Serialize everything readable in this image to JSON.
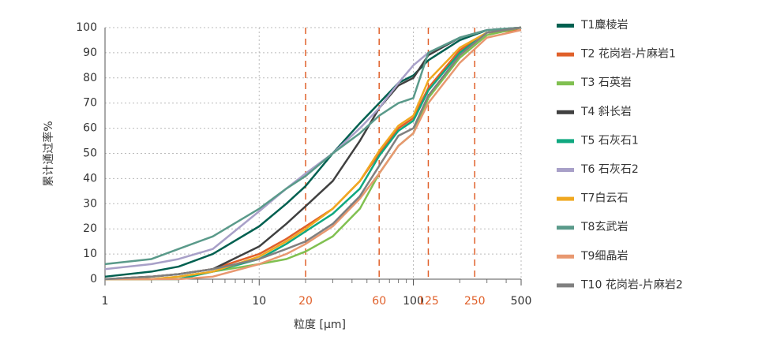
{
  "chart_data": {
    "type": "line",
    "x_label": "粒度 [μm]",
    "y_label": "累计通过率%",
    "log_x": true,
    "grid": true,
    "xlim": [
      1,
      500
    ],
    "xticks": [
      1,
      10,
      100,
      500
    ],
    "reference_lines": [
      20,
      60,
      125,
      250
    ],
    "reference_color": "#e0602a",
    "ylim": [
      0,
      100
    ],
    "yticks": [
      0,
      10,
      20,
      30,
      40,
      50,
      60,
      70,
      80,
      90,
      100
    ],
    "legend": "right",
    "x": [
      1,
      2,
      3,
      5,
      10,
      15,
      20,
      30,
      45,
      60,
      80,
      100,
      125,
      200,
      300,
      500
    ],
    "series": [
      {
        "name": "T1麋棱岩",
        "color": "#006050",
        "values": [
          1,
          3,
          5,
          10,
          21,
          30,
          37,
          50,
          62,
          70,
          78,
          81,
          87,
          95,
          99,
          100
        ]
      },
      {
        "name": "T2 花岗岩-片麻岩1",
        "color": "#e0602a",
        "values": [
          0,
          1,
          2,
          4,
          10,
          16,
          21,
          28,
          39,
          50,
          60,
          64,
          76,
          91,
          98,
          99
        ]
      },
      {
        "name": "T3 石英岩",
        "color": "#80c050",
        "values": [
          0,
          0,
          1,
          3,
          6,
          8,
          11,
          17,
          28,
          42,
          53,
          58,
          72,
          88,
          97,
          100
        ]
      },
      {
        "name": "T4 斜长岩",
        "color": "#404040",
        "values": [
          0,
          1,
          2,
          4,
          13,
          22,
          29,
          39,
          55,
          68,
          77,
          80,
          89,
          96,
          99,
          100
        ]
      },
      {
        "name": "T5 石灰石1",
        "color": "#10a880",
        "values": [
          0,
          0,
          0,
          3,
          8,
          14,
          19,
          26,
          36,
          49,
          59,
          63,
          75,
          90,
          98,
          100
        ]
      },
      {
        "name": "T6 石灰石2",
        "color": "#a8a0c8",
        "values": [
          4,
          6,
          8,
          12,
          27,
          36,
          42,
          50,
          60,
          68,
          78,
          85,
          90,
          96,
          99,
          100
        ]
      },
      {
        "name": "T7白云石",
        "color": "#f0a820",
        "values": [
          0,
          0,
          1,
          3,
          9,
          15,
          20,
          28,
          39,
          51,
          61,
          65,
          79,
          92,
          98,
          100
        ]
      },
      {
        "name": "T8玄武岩",
        "color": "#5a9a8a",
        "values": [
          6,
          8,
          12,
          17,
          28,
          36,
          41,
          50,
          58,
          65,
          70,
          72,
          90,
          96,
          99,
          100
        ]
      },
      {
        "name": "T9细晶岩",
        "color": "#e89870",
        "values": [
          0,
          0,
          0,
          1,
          6,
          10,
          14,
          21,
          32,
          42,
          53,
          58,
          70,
          86,
          96,
          99
        ]
      },
      {
        "name": "T10 花岗岩-片麻岩2",
        "color": "#808080",
        "values": [
          0,
          1,
          2,
          4,
          8,
          12,
          15,
          22,
          33,
          45,
          57,
          60,
          73,
          89,
          98,
          100
        ]
      }
    ]
  }
}
